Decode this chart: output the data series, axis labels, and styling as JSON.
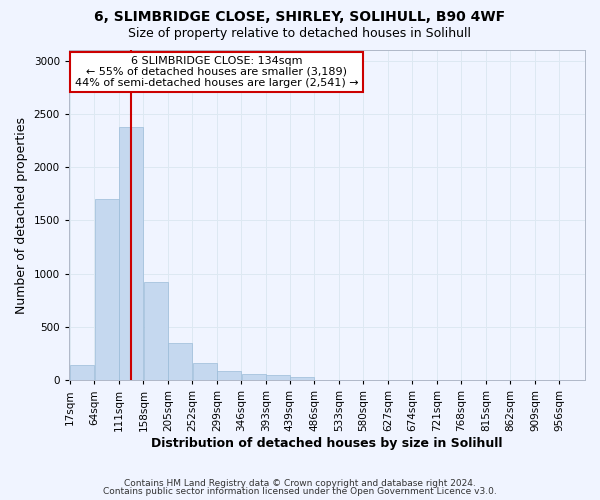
{
  "title1": "6, SLIMBRIDGE CLOSE, SHIRLEY, SOLIHULL, B90 4WF",
  "title2": "Size of property relative to detached houses in Solihull",
  "xlabel": "Distribution of detached houses by size in Solihull",
  "ylabel": "Number of detached properties",
  "bin_edges": [
    17,
    64,
    111,
    158,
    205,
    252,
    299,
    346,
    393,
    439,
    486,
    533,
    580,
    627,
    674,
    721,
    768,
    815,
    862,
    909,
    956
  ],
  "bar_heights": [
    140,
    1700,
    2380,
    920,
    350,
    160,
    90,
    60,
    45,
    30,
    5,
    5,
    5,
    3,
    2,
    1,
    1,
    1,
    0,
    0
  ],
  "bar_color": "#c5d8ef",
  "bar_edgecolor": "#9bbcd8",
  "grid_color": "#dde8f2",
  "bg_color": "#f0f4ff",
  "property_size": 134,
  "vline_color": "#cc0000",
  "annotation_line1": "6 SLIMBRIDGE CLOSE: 134sqm",
  "annotation_line2": "← 55% of detached houses are smaller (3,189)",
  "annotation_line3": "44% of semi-detached houses are larger (2,541) →",
  "annotation_box_color": "#cc0000",
  "ylim": [
    0,
    3100
  ],
  "yticks": [
    0,
    500,
    1000,
    1500,
    2000,
    2500,
    3000
  ],
  "footer1": "Contains HM Land Registry data © Crown copyright and database right 2024.",
  "footer2": "Contains public sector information licensed under the Open Government Licence v3.0.",
  "title_fontsize": 10,
  "subtitle_fontsize": 9,
  "axis_label_fontsize": 9,
  "tick_fontsize": 7.5,
  "ann_fontsize": 8
}
